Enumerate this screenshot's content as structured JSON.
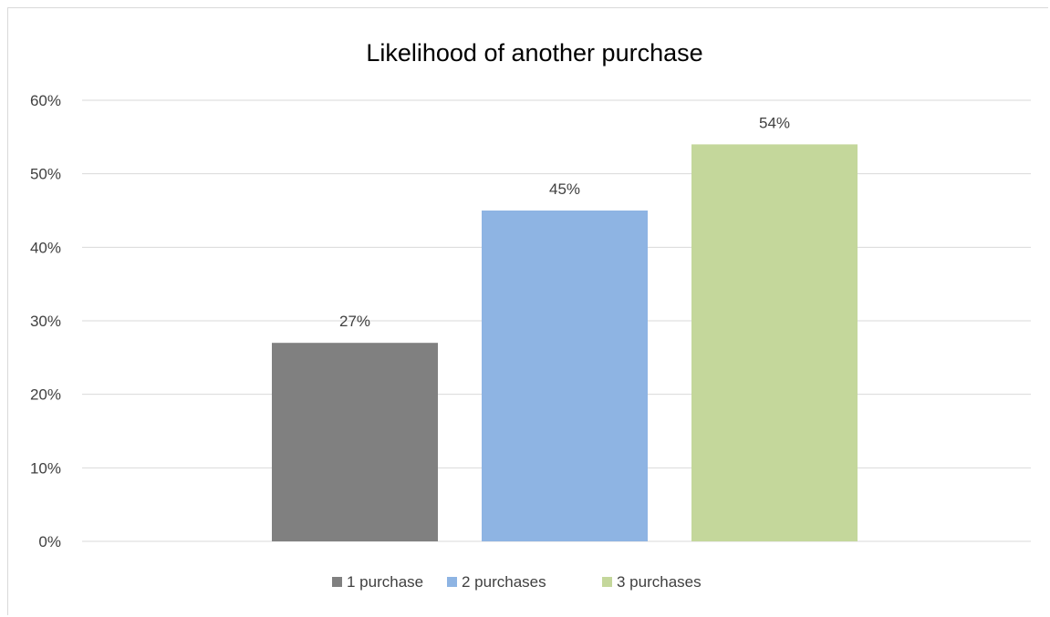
{
  "chart_data": {
    "type": "bar",
    "title": "Likelihood of another purchase",
    "xlabel": "",
    "ylabel": "",
    "ylim": [
      0,
      60
    ],
    "y_ticks": [
      0,
      10,
      20,
      30,
      40,
      50,
      60
    ],
    "y_tick_labels": [
      "0%",
      "10%",
      "20%",
      "30%",
      "40%",
      "50%",
      "60%"
    ],
    "grid": true,
    "legend_position": "bottom",
    "series": [
      {
        "name": "1 purchase",
        "values": [
          27
        ],
        "label": "27%",
        "color": "#808080"
      },
      {
        "name": "2 purchases",
        "values": [
          45
        ],
        "label": "45%",
        "color": "#8eb4e3"
      },
      {
        "name": "3 purchases",
        "values": [
          54
        ],
        "label": "54%",
        "color": "#c4d79b"
      }
    ]
  }
}
